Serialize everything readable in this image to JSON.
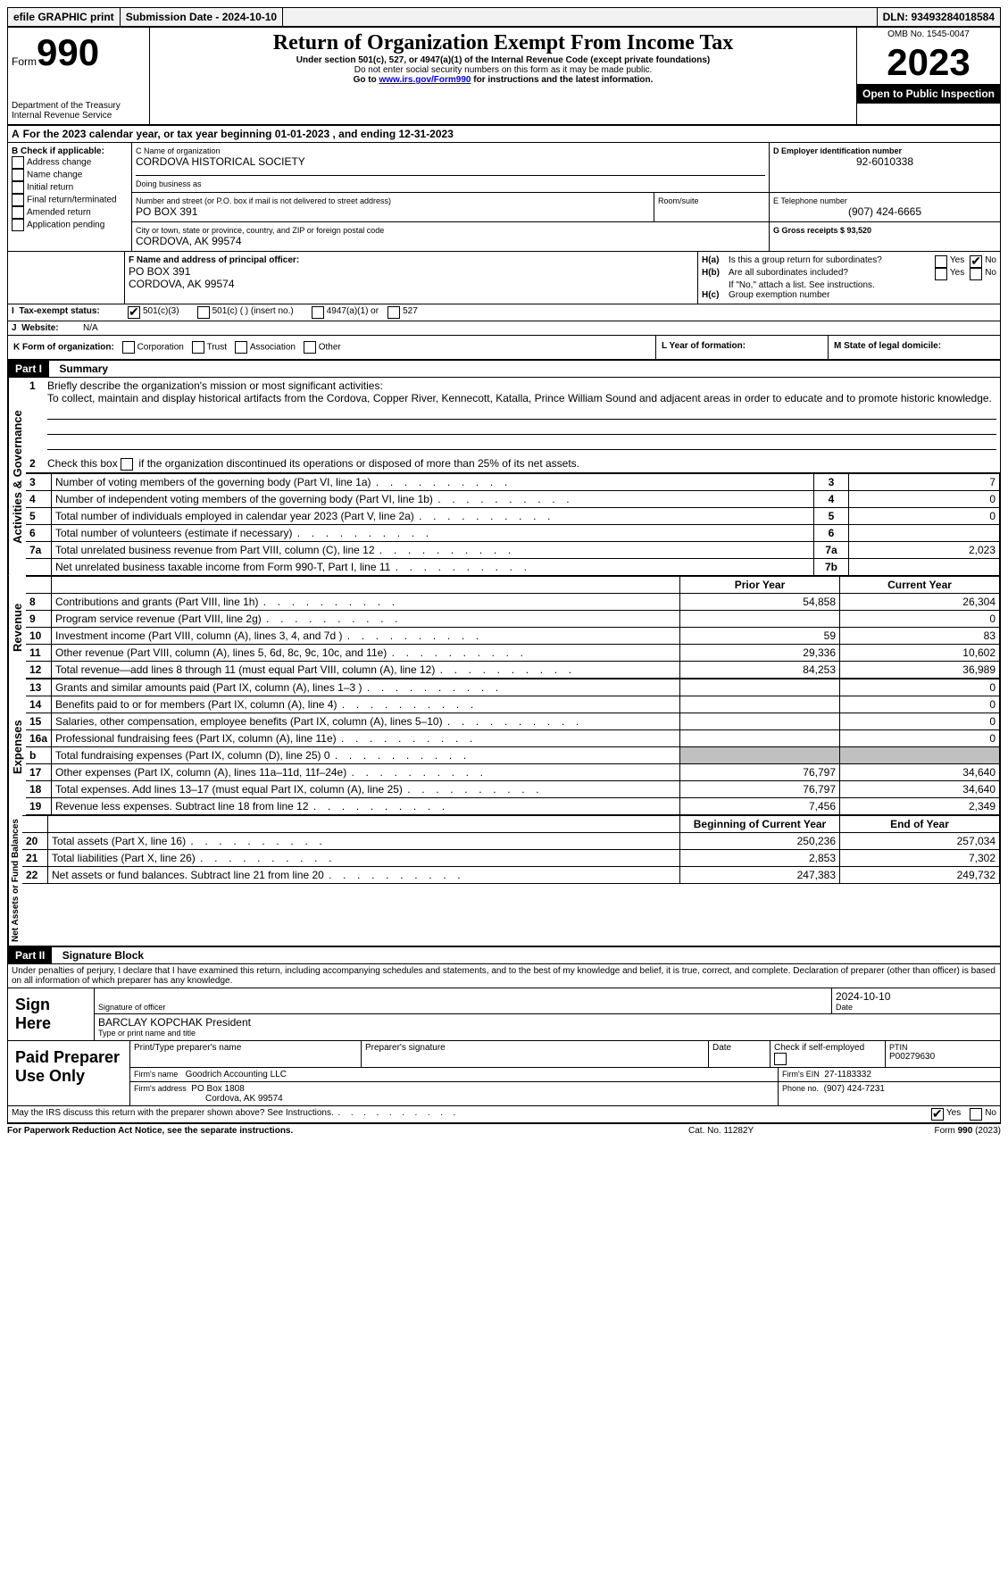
{
  "top_bar": {
    "efile": "efile GRAPHIC print",
    "submission": "Submission Date - 2024-10-10",
    "dln": "DLN: 93493284018584"
  },
  "header": {
    "form_label": "Form",
    "form_number": "990",
    "title": "Return of Organization Exempt From Income Tax",
    "subtitle": "Under section 501(c), 527, or 4947(a)(1) of the Internal Revenue Code (except private foundations)",
    "warn": "Do not enter social security numbers on this form as it may be made public.",
    "goto_prefix": "Go to ",
    "goto_link": "www.irs.gov/Form990",
    "goto_suffix": " for instructions and the latest information.",
    "dept": "Department of the Treasury",
    "dept2": "Internal Revenue Service",
    "omb": "OMB No. 1545-0047",
    "year": "2023",
    "inspection": "Open to Public Inspection"
  },
  "section_a": {
    "line": "For the 2023 calendar year, or tax year beginning 01-01-2023   , and ending 12-31-2023"
  },
  "section_b": {
    "label": "B Check if applicable:",
    "address_change": "Address change",
    "name_change": "Name change",
    "initial_return": "Initial return",
    "final_return": "Final return/terminated",
    "amended_return": "Amended return",
    "application_pending": "Application pending"
  },
  "section_c": {
    "label": "C Name of organization",
    "name": "CORDOVA HISTORICAL SOCIETY",
    "dba_label": "Doing business as",
    "dba": "",
    "street_label": "Number and street (or P.O. box if mail is not delivered to street address)",
    "street": "PO BOX 391",
    "room_label": "Room/suite",
    "room": "",
    "city_label": "City or town, state or province, country, and ZIP or foreign postal code",
    "city": "CORDOVA, AK  99574"
  },
  "section_d": {
    "label": "D Employer identification number",
    "ein": "92-6010338"
  },
  "section_e": {
    "label": "E Telephone number",
    "phone": "(907) 424-6665"
  },
  "section_g": {
    "label": "G Gross receipts $ 93,520"
  },
  "section_f": {
    "label": "F Name and address of principal officer:",
    "line1": "PO BOX 391",
    "line2": "CORDOVA, AK  99574"
  },
  "section_h": {
    "a_label": "Is this a group return for subordinates?",
    "b_label": "Are all subordinates included?",
    "b_note": "If \"No,\" attach a list. See instructions.",
    "c_label": "Group exemption number",
    "yes": "Yes",
    "no": "No"
  },
  "section_i": {
    "label": "Tax-exempt status:",
    "opt1": "501(c)(3)",
    "opt2": "501(c) (  ) (insert no.)",
    "opt3": "4947(a)(1) or",
    "opt4": "527"
  },
  "section_j": {
    "label": "Website:",
    "value": "N/A"
  },
  "section_k": {
    "label": "K Form of organization:",
    "corp": "Corporation",
    "trust": "Trust",
    "assoc": "Association",
    "other": "Other"
  },
  "section_l": {
    "label": "L Year of formation:"
  },
  "section_m": {
    "label": "M State of legal domicile:"
  },
  "part1": {
    "header": "Part I",
    "title": "Summary",
    "q1_label": "Briefly describe the organization's mission or most significant activities:",
    "q1_text": "To collect, maintain and display historical artifacts from the Cordova, Copper River, Kennecott, Katalla, Prince William Sound and adjacent areas in order to educate and to promote historic knowledge.",
    "q2": "Check this box",
    "q2_suffix": "if the organization discontinued its operations or disposed of more than 25% of its net assets.",
    "vlabel_a": "Activities & Governance",
    "vlabel_r": "Revenue",
    "vlabel_e": "Expenses",
    "vlabel_n": "Net Assets or Fund Balances",
    "prior_year": "Prior Year",
    "current_year": "Current Year",
    "begin_year": "Beginning of Current Year",
    "end_year": "End of Year",
    "rows_gov": [
      {
        "num": "3",
        "label": "Number of voting members of the governing body (Part VI, line 1a)",
        "box": "3",
        "val": "7"
      },
      {
        "num": "4",
        "label": "Number of independent voting members of the governing body (Part VI, line 1b)",
        "box": "4",
        "val": "0"
      },
      {
        "num": "5",
        "label": "Total number of individuals employed in calendar year 2023 (Part V, line 2a)",
        "box": "5",
        "val": "0"
      },
      {
        "num": "6",
        "label": "Total number of volunteers (estimate if necessary)",
        "box": "6",
        "val": ""
      },
      {
        "num": "7a",
        "label": "Total unrelated business revenue from Part VIII, column (C), line 12",
        "box": "7a",
        "val": "2,023"
      },
      {
        "num": "",
        "label": "Net unrelated business taxable income from Form 990-T, Part I, line 11",
        "box": "7b",
        "val": ""
      }
    ],
    "rows_rev": [
      {
        "num": "8",
        "label": "Contributions and grants (Part VIII, line 1h)",
        "prior": "54,858",
        "curr": "26,304"
      },
      {
        "num": "9",
        "label": "Program service revenue (Part VIII, line 2g)",
        "prior": "",
        "curr": "0"
      },
      {
        "num": "10",
        "label": "Investment income (Part VIII, column (A), lines 3, 4, and 7d )",
        "prior": "59",
        "curr": "83"
      },
      {
        "num": "11",
        "label": "Other revenue (Part VIII, column (A), lines 5, 6d, 8c, 9c, 10c, and 11e)",
        "prior": "29,336",
        "curr": "10,602"
      },
      {
        "num": "12",
        "label": "Total revenue—add lines 8 through 11 (must equal Part VIII, column (A), line 12)",
        "prior": "84,253",
        "curr": "36,989"
      }
    ],
    "rows_exp": [
      {
        "num": "13",
        "label": "Grants and similar amounts paid (Part IX, column (A), lines 1–3 )",
        "prior": "",
        "curr": "0"
      },
      {
        "num": "14",
        "label": "Benefits paid to or for members (Part IX, column (A), line 4)",
        "prior": "",
        "curr": "0"
      },
      {
        "num": "15",
        "label": "Salaries, other compensation, employee benefits (Part IX, column (A), lines 5–10)",
        "prior": "",
        "curr": "0"
      },
      {
        "num": "16a",
        "label": "Professional fundraising fees (Part IX, column (A), line 11e)",
        "prior": "",
        "curr": "0"
      },
      {
        "num": "b",
        "label": "Total fundraising expenses (Part IX, column (D), line 25) 0",
        "prior": "GREY",
        "curr": "GREY"
      },
      {
        "num": "17",
        "label": "Other expenses (Part IX, column (A), lines 11a–11d, 11f–24e)",
        "prior": "76,797",
        "curr": "34,640"
      },
      {
        "num": "18",
        "label": "Total expenses. Add lines 13–17 (must equal Part IX, column (A), line 25)",
        "prior": "76,797",
        "curr": "34,640"
      },
      {
        "num": "19",
        "label": "Revenue less expenses. Subtract line 18 from line 12",
        "prior": "7,456",
        "curr": "2,349"
      }
    ],
    "rows_net": [
      {
        "num": "20",
        "label": "Total assets (Part X, line 16)",
        "prior": "250,236",
        "curr": "257,034"
      },
      {
        "num": "21",
        "label": "Total liabilities (Part X, line 26)",
        "prior": "2,853",
        "curr": "7,302"
      },
      {
        "num": "22",
        "label": "Net assets or fund balances. Subtract line 21 from line 20",
        "prior": "247,383",
        "curr": "249,732"
      }
    ]
  },
  "part2": {
    "header": "Part II",
    "title": "Signature Block",
    "decl": "Under penalties of perjury, I declare that I have examined this return, including accompanying schedules and statements, and to the best of my knowledge and belief, it is true, correct, and complete. Declaration of preparer (other than officer) is based on all information of which preparer has any knowledge.",
    "sign_here": "Sign Here",
    "sig_officer": "Signature of officer",
    "officer_name": "BARCLAY KOPCHAK  President",
    "type_name": "Type or print name and title",
    "sig_date": "2024-10-10",
    "date": "Date",
    "paid": "Paid Preparer Use Only",
    "prep_name_label": "Print/Type preparer's name",
    "prep_sig_label": "Preparer's signature",
    "self_emp": "Check         if self-employed",
    "ptin_label": "PTIN",
    "ptin": "P00279630",
    "firm_name_label": "Firm's name",
    "firm_name": "Goodrich Accounting LLC",
    "firm_ein_label": "Firm's EIN",
    "firm_ein": "27-1183332",
    "firm_addr_label": "Firm's address",
    "firm_addr1": "PO Box 1808",
    "firm_addr2": "Cordova, AK  99574",
    "firm_phone_label": "Phone no.",
    "firm_phone": "(907) 424-7231",
    "discuss": "May the IRS discuss this return with the preparer shown above? See Instructions.",
    "yes": "Yes",
    "no": "No"
  },
  "footer": {
    "pra": "For Paperwork Reduction Act Notice, see the separate instructions.",
    "cat": "Cat. No. 11282Y",
    "form": "Form 990 (2023)"
  }
}
